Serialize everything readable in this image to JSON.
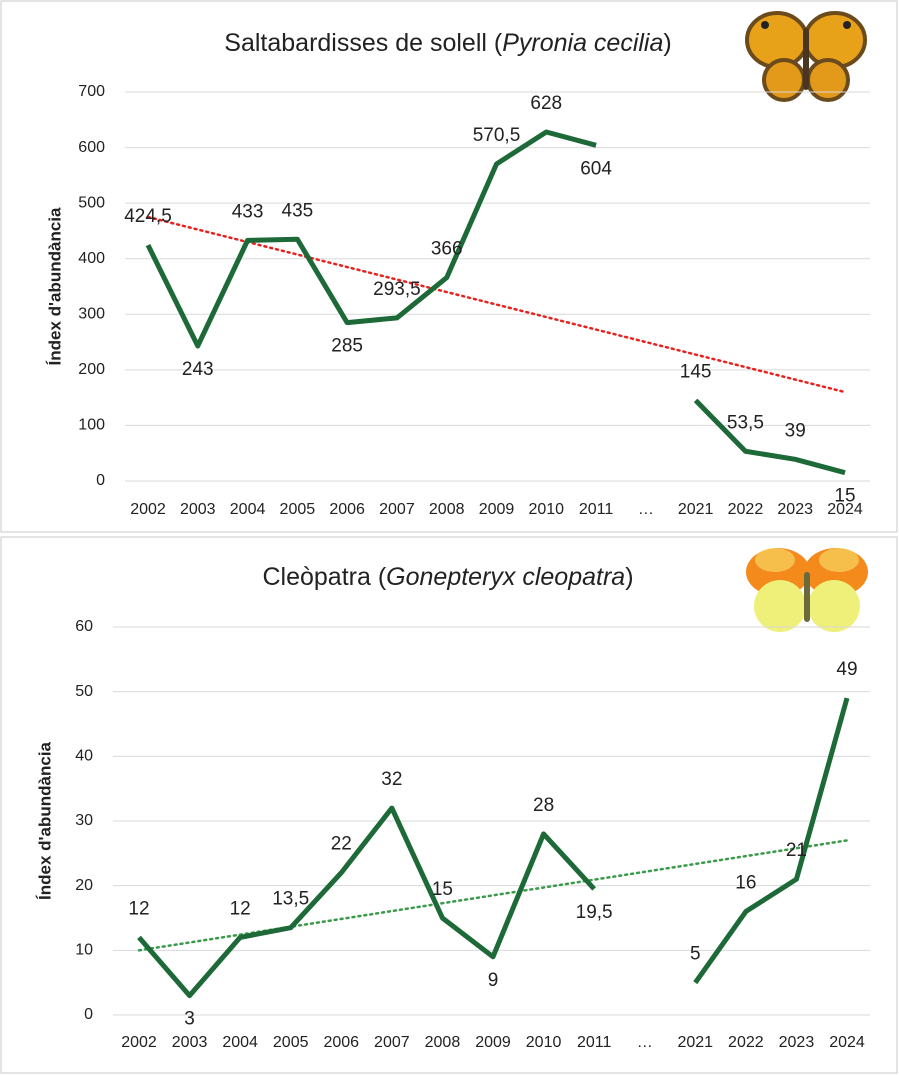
{
  "chart_data": [
    {
      "type": "line",
      "title_parts": [
        "Saltabardisses de solell (",
        "Pyronia cecilia",
        ")"
      ],
      "y_label": "Índex d'abundància",
      "categories": [
        "2002",
        "2003",
        "2004",
        "2005",
        "2006",
        "2007",
        "2008",
        "2009",
        "2010",
        "2011",
        "…",
        "2021",
        "2022",
        "2023",
        "2024"
      ],
      "series": [
        {
          "name": "Pyronia cecilia",
          "color": "#1d6a38",
          "values": [
            424.5,
            243,
            433,
            435,
            285,
            293.5,
            366,
            570.5,
            628,
            604,
            null,
            145,
            53.5,
            39,
            15
          ],
          "value_labels": [
            "424,5",
            "243",
            "433",
            "435",
            "285",
            "293,5",
            "366",
            "570,5",
            "628",
            "604",
            null,
            "145",
            "53,5",
            "39",
            "15"
          ]
        }
      ],
      "trend": {
        "color": "#e8231f",
        "start": 475,
        "end": 160
      },
      "ylim": [
        0,
        700
      ],
      "yticks": [
        0,
        100,
        200,
        300,
        400,
        500,
        600,
        700
      ],
      "grid": true
    },
    {
      "type": "line",
      "title_parts": [
        "Cleòpatra (",
        "Gonepteryx cleopatra",
        ")"
      ],
      "y_label": "Índex d'abundància",
      "categories": [
        "2002",
        "2003",
        "2004",
        "2005",
        "2006",
        "2007",
        "2008",
        "2009",
        "2010",
        "2011",
        "…",
        "2021",
        "2022",
        "2023",
        "2024"
      ],
      "series": [
        {
          "name": "Gonepteryx cleopatra",
          "color": "#1d6a38",
          "values": [
            12,
            3,
            12,
            13.5,
            22,
            32,
            15,
            9,
            28,
            19.5,
            null,
            5,
            16,
            21,
            49
          ],
          "value_labels": [
            "12",
            "3",
            "12",
            "13,5",
            "22",
            "32",
            "15",
            "9",
            "28",
            "19,5",
            null,
            "5",
            "16",
            "21",
            "49"
          ]
        }
      ],
      "trend": {
        "color": "#3a9a4a",
        "start": 10,
        "end": 27
      },
      "ylim": [
        0,
        60
      ],
      "yticks": [
        0,
        10,
        20,
        30,
        40,
        50,
        60
      ],
      "grid": true
    }
  ]
}
